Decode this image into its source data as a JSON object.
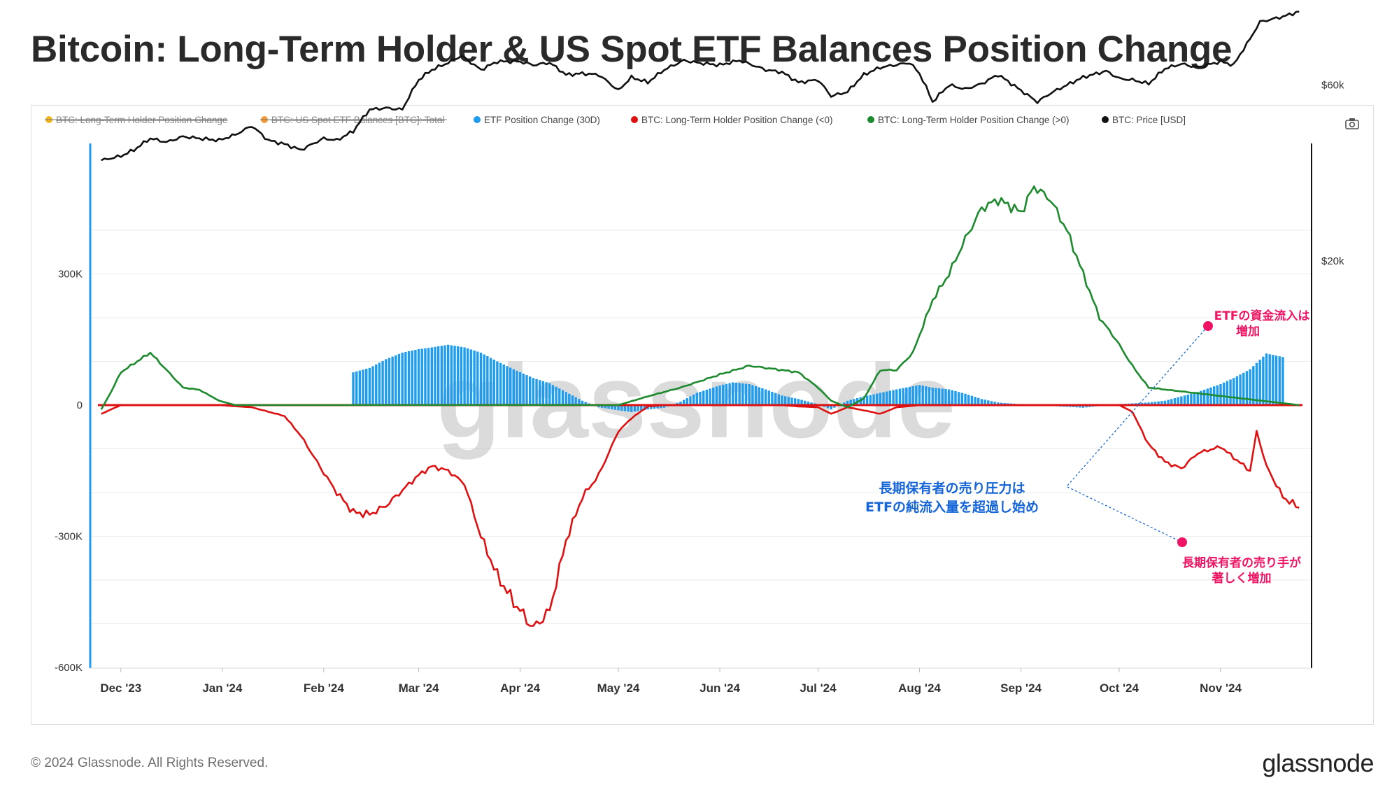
{
  "title": "Bitcoin: Long-Term Holder & US Spot ETF Balances Position Change",
  "footer": "© 2024 Glassnode. All Rights Reserved.",
  "brand": "glassnode",
  "watermark": "glassnode",
  "camera_icon": "camera-icon",
  "colors": {
    "etf": "#1e9df0",
    "lth_neg": "#dd1111",
    "lth_pos": "#1d8a2e",
    "price": "#111111",
    "annotation_blue": "#1565d8",
    "annotation_pink": "#ee1463"
  },
  "legend": [
    {
      "label": "BTC: Long-Term Holder Position Change",
      "color": "#f2b51c",
      "disabled": true
    },
    {
      "label": "BTC: US Spot ETF Balances [BTC]: Total",
      "color": "#f39a36",
      "disabled": true
    },
    {
      "label": "ETF Position Change (30D)",
      "color": "#1e9df0",
      "disabled": false
    },
    {
      "label": "BTC: Long-Term Holder Position Change (<0)",
      "color": "#dd1111",
      "disabled": false
    },
    {
      "label": "BTC: Long-Term Holder Position Change (>0)",
      "color": "#1d8a2e",
      "disabled": false
    },
    {
      "label": "BTC: Price [USD]",
      "color": "#111111",
      "disabled": false
    }
  ],
  "annotations": {
    "blue_line1": "長期保有者の売り圧力は",
    "blue_line2": "ETFの純流入量を超過し始め",
    "etf_line1": "ETFの資金流入は",
    "etf_line2": "増加",
    "lth_line1": "長期保有者の売り手が",
    "lth_line2": "著しく増加"
  },
  "chart_data": {
    "type": "line",
    "title": "Bitcoin: Long-Term Holder & US Spot ETF Balances Position Change",
    "x_ticks": [
      "Dec '23",
      "Jan '24",
      "Feb '24",
      "Mar '24",
      "Apr '24",
      "May '24",
      "Jun '24",
      "Jul '24",
      "Aug '24",
      "Sep '24",
      "Oct '24",
      "Nov '24"
    ],
    "y_left": {
      "ticks": [
        "300K",
        "0",
        "-300K",
        "-600K"
      ],
      "min": -600000,
      "max": 600000
    },
    "y_right": {
      "ticks": [
        "$60k",
        "$20k"
      ],
      "scale": "log"
    },
    "grid": true,
    "legend_position": "top-left",
    "series": [
      {
        "name": "ETF Position Change (30D)",
        "kind": "bar",
        "x": [
          "2024-02-10",
          "2024-02-15",
          "2024-02-20",
          "2024-02-25",
          "2024-03-01",
          "2024-03-05",
          "2024-03-10",
          "2024-03-15",
          "2024-03-20",
          "2024-03-25",
          "2024-03-30",
          "2024-04-05",
          "2024-04-10",
          "2024-04-15",
          "2024-04-20",
          "2024-04-25",
          "2024-05-01",
          "2024-05-05",
          "2024-05-10",
          "2024-05-15",
          "2024-05-20",
          "2024-05-25",
          "2024-06-01",
          "2024-06-05",
          "2024-06-10",
          "2024-06-15",
          "2024-06-20",
          "2024-06-25",
          "2024-07-01",
          "2024-07-05",
          "2024-07-10",
          "2024-07-15",
          "2024-07-20",
          "2024-07-25",
          "2024-08-01",
          "2024-08-05",
          "2024-08-10",
          "2024-08-15",
          "2024-08-20",
          "2024-08-25",
          "2024-09-01",
          "2024-09-05",
          "2024-09-10",
          "2024-09-15",
          "2024-09-20",
          "2024-09-25",
          "2024-10-01",
          "2024-10-05",
          "2024-10-10",
          "2024-10-15",
          "2024-10-20",
          "2024-10-25",
          "2024-11-01",
          "2024-11-05",
          "2024-11-10",
          "2024-11-15",
          "2024-11-20"
        ],
        "values": [
          75000,
          85000,
          105000,
          120000,
          128000,
          132000,
          138000,
          132000,
          120000,
          100000,
          82000,
          62000,
          50000,
          30000,
          10000,
          -5000,
          -12000,
          -16000,
          -10000,
          -6000,
          8000,
          28000,
          45000,
          52000,
          48000,
          36000,
          22000,
          14000,
          2000,
          -10000,
          10000,
          20000,
          28000,
          36000,
          46000,
          40000,
          36000,
          26000,
          14000,
          6000,
          2000,
          0,
          -2000,
          -4000,
          -6000,
          -2000,
          2000,
          4000,
          6000,
          10000,
          20000,
          30000,
          48000,
          62000,
          82000,
          118000,
          110000
        ]
      },
      {
        "name": "BTC: Long-Term Holder Position Change (<0)",
        "kind": "line",
        "x": [
          "2023-11-25",
          "2023-12-01",
          "2023-12-10",
          "2023-12-20",
          "2023-12-31",
          "2024-01-10",
          "2024-01-20",
          "2024-01-25",
          "2024-02-01",
          "2024-02-05",
          "2024-02-10",
          "2024-02-15",
          "2024-02-20",
          "2024-02-25",
          "2024-03-01",
          "2024-03-05",
          "2024-03-10",
          "2024-03-15",
          "2024-03-20",
          "2024-03-25",
          "2024-03-30",
          "2024-04-05",
          "2024-04-10",
          "2024-04-15",
          "2024-04-20",
          "2024-04-25",
          "2024-05-01",
          "2024-05-05",
          "2024-05-10",
          "2024-05-15",
          "2024-06-01",
          "2024-06-20",
          "2024-06-25",
          "2024-07-01",
          "2024-07-05",
          "2024-07-10",
          "2024-07-15",
          "2024-07-20",
          "2024-07-25",
          "2024-08-01",
          "2024-09-01",
          "2024-10-01",
          "2024-10-05",
          "2024-10-10",
          "2024-10-15",
          "2024-10-20",
          "2024-10-25",
          "2024-11-01",
          "2024-11-05",
          "2024-11-10",
          "2024-11-12",
          "2024-11-15",
          "2024-11-20",
          "2024-11-25"
        ],
        "values": [
          -20000,
          0,
          0,
          0,
          0,
          -5000,
          -25000,
          -70000,
          -155000,
          -200000,
          -245000,
          -250000,
          -230000,
          -195000,
          -160000,
          -140000,
          -150000,
          -180000,
          -300000,
          -390000,
          -450000,
          -510000,
          -470000,
          -310000,
          -210000,
          -160000,
          -60000,
          -30000,
          -3000,
          0,
          0,
          0,
          -3000,
          -5000,
          -20000,
          -5000,
          -12000,
          -20000,
          -5000,
          0,
          0,
          0,
          -15000,
          -90000,
          -130000,
          -145000,
          -110000,
          -95000,
          -120000,
          -150000,
          -60000,
          -140000,
          -210000,
          -235000
        ]
      },
      {
        "name": "BTC: Long-Term Holder Position Change (>0)",
        "kind": "line",
        "x": [
          "2023-11-25",
          "2023-11-28",
          "2023-12-01",
          "2023-12-05",
          "2023-12-10",
          "2023-12-15",
          "2023-12-20",
          "2023-12-25",
          "2023-12-31",
          "2024-01-05",
          "2024-01-10",
          "2024-05-01",
          "2024-05-10",
          "2024-05-20",
          "2024-06-01",
          "2024-06-10",
          "2024-06-20",
          "2024-06-25",
          "2024-07-01",
          "2024-07-05",
          "2024-07-10",
          "2024-07-15",
          "2024-07-20",
          "2024-07-25",
          "2024-07-30",
          "2024-08-05",
          "2024-08-10",
          "2024-08-15",
          "2024-08-20",
          "2024-08-25",
          "2024-08-30",
          "2024-09-01",
          "2024-09-05",
          "2024-09-10",
          "2024-09-15",
          "2024-09-20",
          "2024-09-25",
          "2024-09-30",
          "2024-10-05",
          "2024-10-10",
          "2024-11-25"
        ],
        "values": [
          -10000,
          30000,
          75000,
          95000,
          120000,
          80000,
          40000,
          35000,
          10000,
          0,
          0,
          0,
          20000,
          40000,
          70000,
          90000,
          80000,
          75000,
          40000,
          10000,
          -5000,
          15000,
          80000,
          80000,
          120000,
          240000,
          300000,
          380000,
          450000,
          470000,
          450000,
          440000,
          500000,
          470000,
          400000,
          300000,
          200000,
          150000,
          90000,
          40000,
          0
        ]
      },
      {
        "name": "BTC: Price [USD]",
        "kind": "line",
        "axis": "right",
        "x": [
          "2023-11-25",
          "2023-12-01",
          "2023-12-05",
          "2023-12-10",
          "2023-12-15",
          "2023-12-20",
          "2023-12-25",
          "2023-12-31",
          "2024-01-05",
          "2024-01-10",
          "2024-01-15",
          "2024-01-20",
          "2024-01-25",
          "2024-02-01",
          "2024-02-05",
          "2024-02-10",
          "2024-02-15",
          "2024-02-20",
          "2024-02-25",
          "2024-03-01",
          "2024-03-05",
          "2024-03-10",
          "2024-03-14",
          "2024-03-20",
          "2024-03-25",
          "2024-04-01",
          "2024-04-05",
          "2024-04-10",
          "2024-04-15",
          "2024-04-20",
          "2024-04-25",
          "2024-05-01",
          "2024-05-05",
          "2024-05-10",
          "2024-05-15",
          "2024-05-21",
          "2024-05-25",
          "2024-06-01",
          "2024-06-07",
          "2024-06-15",
          "2024-06-20",
          "2024-06-25",
          "2024-07-01",
          "2024-07-05",
          "2024-07-10",
          "2024-07-15",
          "2024-07-20",
          "2024-07-29",
          "2024-08-01",
          "2024-08-05",
          "2024-08-10",
          "2024-08-15",
          "2024-08-20",
          "2024-08-25",
          "2024-09-01",
          "2024-09-06",
          "2024-09-10",
          "2024-09-15",
          "2024-09-20",
          "2024-09-27",
          "2024-10-01",
          "2024-10-05",
          "2024-10-10",
          "2024-10-15",
          "2024-10-20",
          "2024-10-25",
          "2024-11-01",
          "2024-11-05",
          "2024-11-10",
          "2024-11-13",
          "2024-11-20",
          "2024-11-25"
        ],
        "values": [
          37500,
          38500,
          40000,
          43000,
          42000,
          43500,
          43000,
          42500,
          44000,
          46500,
          42500,
          41500,
          40000,
          43000,
          42500,
          45000,
          51500,
          52000,
          51500,
          62000,
          66000,
          69000,
          72000,
          66000,
          69500,
          69500,
          68000,
          69000,
          64000,
          64500,
          64000,
          58000,
          63000,
          61000,
          66000,
          70000,
          69000,
          68000,
          70000,
          66000,
          65000,
          61000,
          62000,
          56000,
          57500,
          64000,
          67000,
          69000,
          64500,
          54000,
          60000,
          58500,
          60500,
          64000,
          58000,
          54000,
          57000,
          60000,
          63000,
          65500,
          62500,
          62000,
          60500,
          66500,
          68500,
          67000,
          69500,
          68000,
          80000,
          89000,
          92000,
          95000
        ]
      }
    ]
  }
}
